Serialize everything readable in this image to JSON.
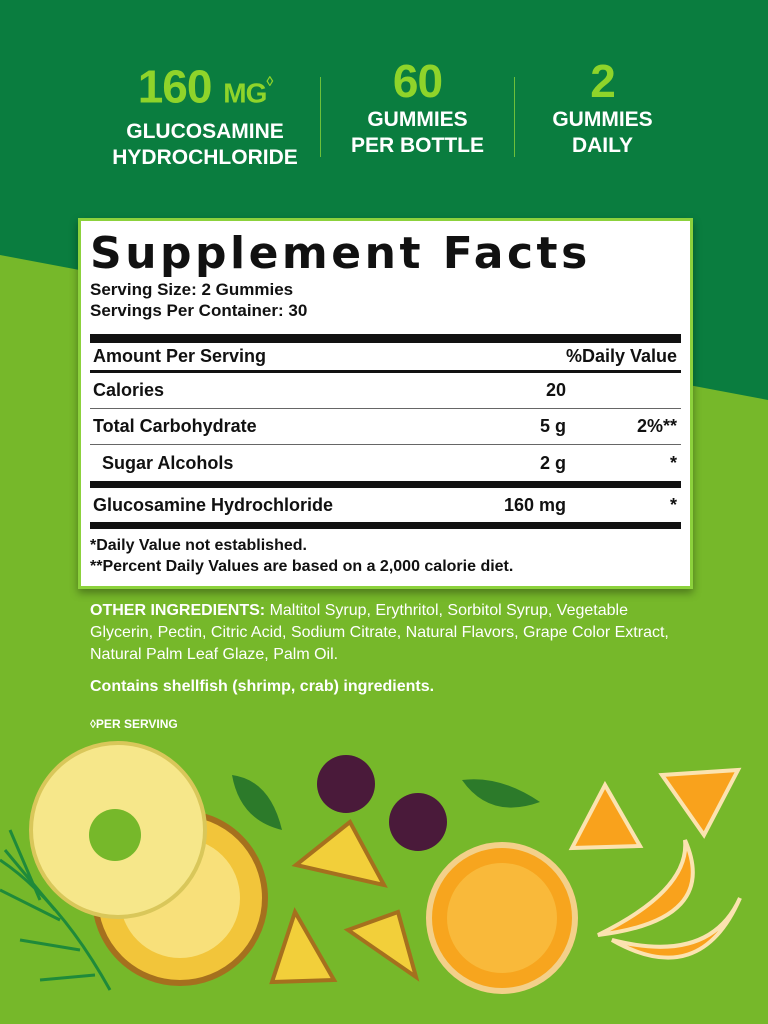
{
  "stats": [
    {
      "number": "160",
      "unit": "MG",
      "mark": "◊",
      "label1": "GLUCOSAMINE",
      "label2": "HYDROCHLORIDE"
    },
    {
      "number": "60",
      "label1": "GUMMIES",
      "label2": "PER BOTTLE"
    },
    {
      "number": "2",
      "label1": "GUMMIES",
      "label2": "DAILY"
    }
  ],
  "facts": {
    "title": "Supplement Facts",
    "serving_size": "Serving Size: 2 Gummies",
    "servings_per_container": "Servings Per Container: 30",
    "header_amount": "Amount Per Serving",
    "header_dv": "%Daily Value",
    "rows": [
      {
        "name": "Calories",
        "amount": "20",
        "dv": ""
      },
      {
        "name": "Total Carbohydrate",
        "amount": "5 g",
        "dv": "2%**"
      },
      {
        "name": "Sugar Alcohols",
        "amount": "2 g",
        "dv": "*"
      },
      {
        "name": "Glucosamine Hydrochloride",
        "amount": "160 mg",
        "dv": "*"
      }
    ],
    "footnote1": "*Daily Value not established.",
    "footnote2": "**Percent Daily Values are based on a 2,000 calorie diet."
  },
  "ingredients": {
    "label": "OTHER INGREDIENTS:",
    "text": " Maltitol Syrup, Erythritol, Sorbitol Syrup, Vegetable Glycerin, Pectin, Citric Acid, Sodium Citrate, Natural Flavors, Grape Color Extract, Natural Palm Leaf Glaze, Palm Oil."
  },
  "allergen": "Contains shellfish (shrimp, crab) ingredients.",
  "per_serving_note": "◊PER SERVING",
  "colors": {
    "dark_green": "#0a7d3f",
    "lime": "#76b82a",
    "accent": "#8fd42a"
  }
}
